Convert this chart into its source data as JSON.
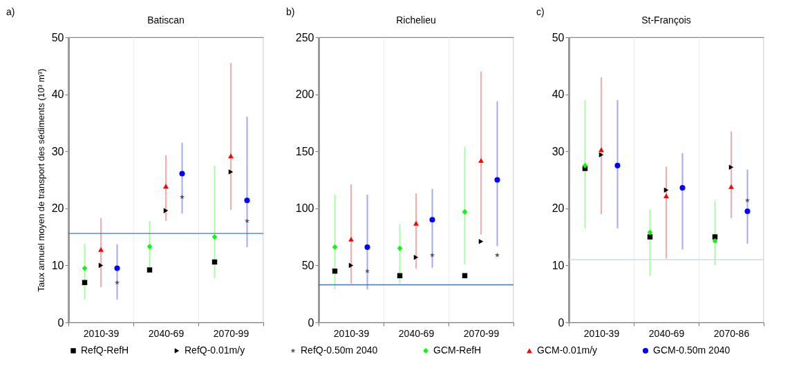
{
  "chart_data": [
    {
      "type": "scatter",
      "title": "Batiscan",
      "ylabel": "Taux annuel moyen de transport des sédiments (10³ m³)",
      "annotations": [
        "a)"
      ],
      "categories": [
        "2010-39",
        "2040-69",
        "2070-99"
      ],
      "ylim": [
        0,
        50
      ],
      "yticks": [
        0,
        10,
        20,
        30,
        40,
        50
      ],
      "grid": "x",
      "legend": "bottom",
      "ref_lines": [
        {
          "axis": "y",
          "value": 15.6,
          "color": "#4472c4"
        }
      ],
      "series": [
        {
          "name": "RefQ-RefH",
          "color": "#000000",
          "marker": "square",
          "values": [
            7,
            9.2,
            10.6
          ]
        },
        {
          "name": "RefQ-0.01m/y",
          "color": "#000000",
          "marker": "triangle-right",
          "values": [
            10,
            19.6,
            26.4
          ]
        },
        {
          "name": "RefQ-0.50m 2040",
          "color": "#555555",
          "marker": "star",
          "values": [
            7,
            22,
            17.8
          ]
        },
        {
          "name": "GCM-RefH",
          "color": "#00ff00",
          "marker": "diamond",
          "values": [
            9.5,
            13.3,
            15
          ],
          "errors": [
            [
              4,
              13.7
            ],
            [
              9.3,
              17.8
            ],
            [
              7.8,
              27.5
            ]
          ]
        },
        {
          "name": "GCM-0.01m/y",
          "color": "#ff0000",
          "marker": "triangle",
          "values": [
            12.8,
            23.9,
            29.2
          ],
          "errors": [
            [
              6.2,
              18.3
            ],
            [
              17.8,
              29.3
            ],
            [
              19.7,
              45.5
            ]
          ]
        },
        {
          "name": "GCM-0.50m 2040",
          "color": "#0000ff",
          "marker": "circle",
          "values": [
            9.5,
            26.1,
            21.4
          ],
          "errors": [
            [
              4,
              13.7
            ],
            [
              19.1,
              31.5
            ],
            [
              13.2,
              36.1
            ]
          ]
        }
      ]
    },
    {
      "type": "scatter",
      "title": "Richelieu",
      "annotations": [
        "b)"
      ],
      "categories": [
        "2010-39",
        "2040-69",
        "2070-99"
      ],
      "ylim": [
        0,
        250
      ],
      "yticks": [
        0,
        50,
        100,
        150,
        200,
        250
      ],
      "grid": "x",
      "legend": "bottom",
      "ref_lines": [
        {
          "axis": "y",
          "value": 33,
          "color": "#4472c4"
        }
      ],
      "series": [
        {
          "name": "RefQ-RefH",
          "color": "#000000",
          "marker": "square",
          "values": [
            45,
            41,
            41
          ]
        },
        {
          "name": "RefQ-0.01m/y",
          "color": "#000000",
          "marker": "triangle-right",
          "values": [
            50,
            57,
            71
          ]
        },
        {
          "name": "RefQ-0.50m 2040",
          "color": "#555555",
          "marker": "star",
          "values": [
            45,
            59,
            59
          ]
        },
        {
          "name": "GCM-RefH",
          "color": "#00ff00",
          "marker": "diamond",
          "values": [
            66,
            65,
            97
          ],
          "errors": [
            [
              29,
              112
            ],
            [
              34,
              86
            ],
            [
              51,
              154
            ]
          ]
        },
        {
          "name": "GCM-0.01m/y",
          "color": "#ff0000",
          "marker": "triangle",
          "values": [
            73,
            87,
            142
          ],
          "errors": [
            [
              34,
              121
            ],
            [
              47,
              113
            ],
            [
              77,
              220
            ]
          ]
        },
        {
          "name": "GCM-0.50m 2040",
          "color": "#0000ff",
          "marker": "circle",
          "values": [
            66,
            90,
            125
          ],
          "errors": [
            [
              29,
              112
            ],
            [
              48,
              117
            ],
            [
              67,
              194
            ]
          ]
        }
      ]
    },
    {
      "type": "scatter",
      "title": "St-François",
      "annotations": [
        "c)"
      ],
      "categories": [
        "2010-39",
        "2040-69",
        "2070-86"
      ],
      "ylim": [
        0,
        50
      ],
      "yticks": [
        0,
        10,
        20,
        30,
        40,
        50
      ],
      "grid": "x",
      "legend": "bottom",
      "ref_lines": [
        {
          "axis": "y",
          "value": 11,
          "color": "#c8d4e0"
        }
      ],
      "series": [
        {
          "name": "RefQ-RefH",
          "color": "#000000",
          "marker": "square",
          "values": [
            27,
            15,
            15
          ]
        },
        {
          "name": "RefQ-0.01m/y",
          "color": "#000000",
          "marker": "triangle-right",
          "values": [
            29.4,
            23.2,
            27.2
          ]
        },
        {
          "name": "RefQ-0.50m 2040",
          "color": "#555555",
          "marker": "star",
          "values": [
            null,
            null,
            21.4
          ]
        },
        {
          "name": "GCM-RefH",
          "color": "#00ff00",
          "marker": "diamond",
          "values": [
            27.5,
            15.8,
            14.3
          ],
          "errors": [
            [
              16.5,
              39
            ],
            [
              8.1,
              19.8
            ],
            [
              10,
              21.3
            ]
          ]
        },
        {
          "name": "GCM-0.01m/y",
          "color": "#ff0000",
          "marker": "triangle",
          "values": [
            30.3,
            22.2,
            23.8
          ],
          "errors": [
            [
              19,
              43
            ],
            [
              11.2,
              27.3
            ],
            [
              18.3,
              33.5
            ]
          ]
        },
        {
          "name": "GCM-0.50m 2040",
          "color": "#0000ff",
          "marker": "circle",
          "values": [
            27.5,
            23.6,
            19.5
          ],
          "errors": [
            [
              16.5,
              39
            ],
            [
              12.8,
              29.7
            ],
            [
              13.8,
              26.8
            ]
          ]
        }
      ]
    }
  ]
}
